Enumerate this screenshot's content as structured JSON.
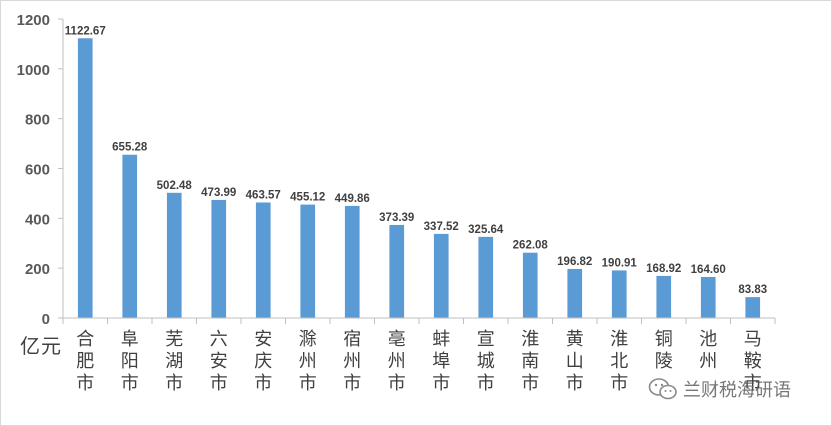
{
  "chart_data": {
    "type": "bar",
    "categories": [
      "合肥市",
      "阜阳市",
      "芜湖市",
      "六安市",
      "安庆市",
      "滁州市",
      "宿州市",
      "亳州市",
      "蚌埠市",
      "宣城市",
      "淮南市",
      "黄山市",
      "淮北市",
      "铜陵",
      "池州",
      "马鞍市"
    ],
    "values": [
      1122.67,
      655.28,
      502.48,
      473.99,
      463.57,
      455.12,
      449.86,
      373.39,
      337.52,
      325.64,
      262.08,
      196.82,
      190.91,
      168.92,
      164.6,
      83.83
    ],
    "value_labels": [
      "1122.67",
      "655.28",
      "502.48",
      "473.99",
      "463.57",
      "455.12",
      "449.86",
      "373.39",
      "337.52",
      "325.64",
      "262.08",
      "196.82",
      "190.91",
      "168.92",
      "164.60",
      "83.83"
    ],
    "y_ticks": [
      "0",
      "200",
      "400",
      "600",
      "800",
      "1000",
      "1200"
    ],
    "ylim": [
      0,
      1200
    ],
    "ylabel": "亿元",
    "grid": false,
    "bar_color": "#5b9bd5",
    "axis_color": "#bfbfbf",
    "tick_label_color": "#595959",
    "category_label_color": "#404040"
  },
  "watermark": {
    "icon": "wechat-icon",
    "text": "兰财税海研语"
  }
}
